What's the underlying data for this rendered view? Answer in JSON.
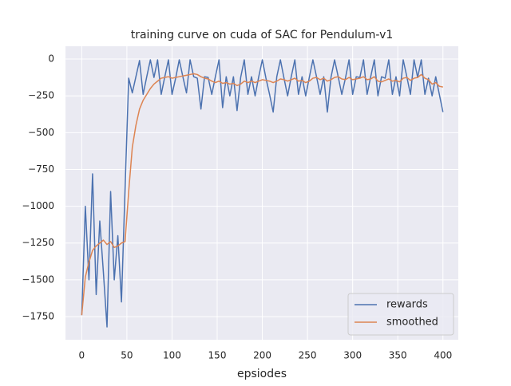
{
  "chart_data": {
    "type": "line",
    "title": "training curve on cuda of SAC for Pendulum-v1",
    "x_label": "epsiodes",
    "x": [
      0,
      4,
      8,
      12,
      16,
      20,
      24,
      28,
      32,
      36,
      40,
      44,
      48,
      52,
      56,
      60,
      64,
      68,
      72,
      76,
      80,
      84,
      88,
      92,
      96,
      100,
      104,
      108,
      112,
      116,
      120,
      124,
      128,
      132,
      136,
      140,
      144,
      148,
      152,
      156,
      160,
      164,
      168,
      172,
      176,
      180,
      184,
      188,
      192,
      196,
      200,
      204,
      208,
      212,
      216,
      220,
      224,
      228,
      232,
      236,
      240,
      244,
      248,
      252,
      256,
      260,
      264,
      268,
      272,
      276,
      280,
      284,
      288,
      292,
      296,
      300,
      304,
      308,
      312,
      316,
      320,
      324,
      328,
      332,
      336,
      340,
      344,
      348,
      352,
      356,
      360,
      364,
      368,
      372,
      376,
      380,
      384,
      388,
      392,
      396,
      400
    ],
    "series": [
      {
        "name": "rewards",
        "color": "#4c72b0",
        "values": [
          -1740,
          -1000,
          -1500,
          -780,
          -1600,
          -1100,
          -1450,
          -1820,
          -900,
          -1500,
          -1200,
          -1650,
          -880,
          -130,
          -230,
          -120,
          -10,
          -240,
          -120,
          -5,
          -125,
          -5,
          -240,
          -120,
          -5,
          -240,
          -130,
          -5,
          -120,
          -230,
          -5,
          -120,
          -130,
          -340,
          -120,
          -125,
          -240,
          -120,
          -5,
          -330,
          -120,
          -250,
          -120,
          -350,
          -125,
          -5,
          -240,
          -120,
          -250,
          -120,
          -5,
          -130,
          -240,
          -360,
          -120,
          -5,
          -130,
          -250,
          -120,
          -5,
          -240,
          -120,
          -250,
          -125,
          -5,
          -120,
          -240,
          -120,
          -360,
          -125,
          -5,
          -120,
          -240,
          -130,
          -5,
          -240,
          -120,
          -125,
          -5,
          -240,
          -120,
          -5,
          -250,
          -120,
          -130,
          -5,
          -240,
          -120,
          -250,
          -5,
          -120,
          -240,
          -5,
          -125,
          -5,
          -240,
          -130,
          -250,
          -120,
          -240,
          -360
        ]
      },
      {
        "name": "smoothed",
        "color": "#dd8452",
        "values": [
          -1740,
          -1480,
          -1380,
          -1300,
          -1270,
          -1250,
          -1230,
          -1260,
          -1240,
          -1280,
          -1270,
          -1250,
          -1240,
          -900,
          -600,
          -450,
          -340,
          -280,
          -240,
          -200,
          -170,
          -150,
          -130,
          -125,
          -120,
          -130,
          -125,
          -120,
          -115,
          -110,
          -105,
          -100,
          -105,
          -120,
          -130,
          -135,
          -150,
          -160,
          -150,
          -165,
          -160,
          -170,
          -165,
          -180,
          -170,
          -150,
          -160,
          -150,
          -160,
          -150,
          -140,
          -145,
          -150,
          -160,
          -150,
          -135,
          -140,
          -150,
          -140,
          -130,
          -150,
          -145,
          -160,
          -150,
          -130,
          -125,
          -140,
          -130,
          -150,
          -140,
          -125,
          -120,
          -135,
          -140,
          -125,
          -140,
          -135,
          -130,
          -120,
          -140,
          -135,
          -120,
          -150,
          -155,
          -145,
          -135,
          -150,
          -145,
          -155,
          -130,
          -125,
          -145,
          -130,
          -125,
          -105,
          -130,
          -140,
          -170,
          -160,
          -185,
          -190
        ]
      }
    ],
    "xlim": [
      -18,
      417
    ],
    "ylim": [
      -1907,
      87
    ],
    "xticks": [
      0,
      50,
      100,
      150,
      200,
      250,
      300,
      350,
      400
    ],
    "yticks": [
      {
        "value": -1750,
        "label": "−1750"
      },
      {
        "value": -1500,
        "label": "−1500"
      },
      {
        "value": -1250,
        "label": "−1250"
      },
      {
        "value": -1000,
        "label": "−1000"
      },
      {
        "value": -750,
        "label": "−750"
      },
      {
        "value": -500,
        "label": "−500"
      },
      {
        "value": -250,
        "label": "−250"
      },
      0
    ],
    "grid": true,
    "legend": "lower right"
  }
}
